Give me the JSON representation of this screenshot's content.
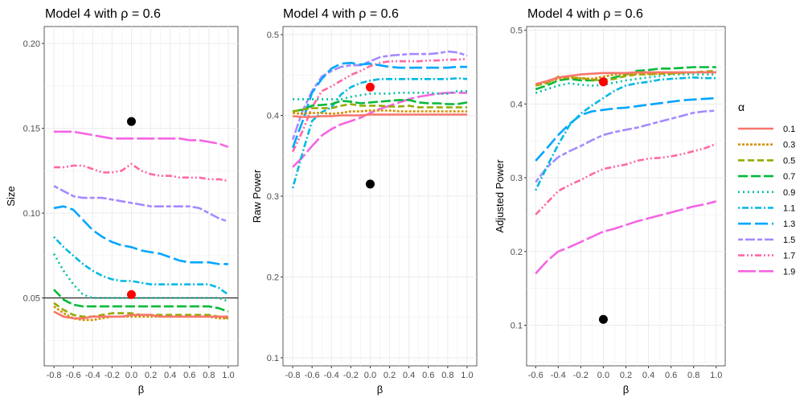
{
  "chart_data": [
    {
      "type": "line",
      "title": "Model 4 with ρ =  0.6",
      "xlabel": "β",
      "ylabel": "Size",
      "xlim": [
        -0.9,
        1.1
      ],
      "ylim": [
        0.01,
        0.21
      ],
      "xticks": [
        "-0.8",
        "-0.6",
        "-0.4",
        "-0.2",
        "0.0",
        "0.2",
        "0.4",
        "0.6",
        "0.8",
        "1.0"
      ],
      "yticks": [
        "0.05",
        "0.10",
        "0.15",
        "0.20"
      ],
      "hline": 0.05,
      "x": [
        -0.8,
        -0.7,
        -0.6,
        -0.5,
        -0.4,
        -0.3,
        -0.2,
        -0.1,
        0.0,
        0.1,
        0.2,
        0.3,
        0.4,
        0.5,
        0.6,
        0.7,
        0.8,
        0.9,
        1.0
      ],
      "series": [
        {
          "name": "0.1",
          "values": [
            0.042,
            0.039,
            0.038,
            0.038,
            0.039,
            0.039,
            0.039,
            0.039,
            0.04,
            0.04,
            0.04,
            0.039,
            0.039,
            0.039,
            0.039,
            0.039,
            0.039,
            0.039,
            0.039
          ]
        },
        {
          "name": "0.3",
          "values": [
            0.045,
            0.041,
            0.038,
            0.037,
            0.037,
            0.038,
            0.039,
            0.039,
            0.039,
            0.039,
            0.039,
            0.039,
            0.039,
            0.039,
            0.039,
            0.039,
            0.039,
            0.038,
            0.038
          ]
        },
        {
          "name": "0.5",
          "values": [
            0.047,
            0.043,
            0.04,
            0.039,
            0.039,
            0.04,
            0.041,
            0.041,
            0.041,
            0.04,
            0.04,
            0.04,
            0.04,
            0.04,
            0.04,
            0.04,
            0.04,
            0.039,
            0.038
          ]
        },
        {
          "name": "0.7",
          "values": [
            0.055,
            0.049,
            0.046,
            0.045,
            0.045,
            0.045,
            0.045,
            0.045,
            0.045,
            0.045,
            0.045,
            0.045,
            0.045,
            0.045,
            0.045,
            0.045,
            0.045,
            0.044,
            0.042
          ]
        },
        {
          "name": "0.9",
          "values": [
            0.076,
            0.066,
            0.058,
            0.052,
            0.05,
            0.05,
            0.05,
            0.05,
            0.05,
            0.05,
            0.05,
            0.05,
            0.05,
            0.05,
            0.05,
            0.05,
            0.05,
            0.05,
            0.048
          ]
        },
        {
          "name": "1.1",
          "values": [
            0.086,
            0.08,
            0.075,
            0.07,
            0.066,
            0.063,
            0.061,
            0.06,
            0.06,
            0.059,
            0.058,
            0.058,
            0.058,
            0.058,
            0.058,
            0.058,
            0.058,
            0.056,
            0.052
          ]
        },
        {
          "name": "1.3",
          "values": [
            0.103,
            0.104,
            0.102,
            0.096,
            0.09,
            0.086,
            0.083,
            0.081,
            0.08,
            0.078,
            0.077,
            0.076,
            0.074,
            0.072,
            0.071,
            0.071,
            0.071,
            0.07,
            0.07
          ]
        },
        {
          "name": "1.5",
          "values": [
            0.116,
            0.113,
            0.11,
            0.109,
            0.109,
            0.109,
            0.108,
            0.107,
            0.106,
            0.105,
            0.104,
            0.104,
            0.104,
            0.104,
            0.104,
            0.103,
            0.1,
            0.097,
            0.095
          ]
        },
        {
          "name": "1.7",
          "values": [
            0.127,
            0.127,
            0.128,
            0.128,
            0.126,
            0.124,
            0.124,
            0.125,
            0.129,
            0.125,
            0.123,
            0.122,
            0.122,
            0.121,
            0.121,
            0.121,
            0.12,
            0.12,
            0.119
          ]
        },
        {
          "name": "1.9",
          "values": [
            0.148,
            0.148,
            0.148,
            0.147,
            0.146,
            0.145,
            0.144,
            0.144,
            0.144,
            0.144,
            0.144,
            0.144,
            0.144,
            0.144,
            0.143,
            0.143,
            0.142,
            0.141,
            0.139
          ]
        }
      ],
      "points": [
        {
          "x": 0.0,
          "y": 0.154,
          "color": "#000000"
        },
        {
          "x": 0.0,
          "y": 0.052,
          "color": "#ff0000"
        }
      ]
    },
    {
      "type": "line",
      "title": "Model 4 with ρ =  0.6",
      "xlabel": "β",
      "ylabel": "Raw Power",
      "xlim": [
        -0.9,
        1.1
      ],
      "ylim": [
        0.09,
        0.51
      ],
      "xticks": [
        "-0.8",
        "-0.6",
        "-0.4",
        "-0.2",
        "0.0",
        "0.2",
        "0.4",
        "0.6",
        "0.8",
        "1.0"
      ],
      "yticks": [
        "0.1",
        "0.2",
        "0.3",
        "0.4",
        "0.5"
      ],
      "x": [
        -0.8,
        -0.7,
        -0.6,
        -0.5,
        -0.4,
        -0.3,
        -0.2,
        -0.1,
        0.0,
        0.1,
        0.2,
        0.3,
        0.4,
        0.5,
        0.6,
        0.7,
        0.8,
        0.9,
        1.0
      ],
      "series": [
        {
          "name": "0.1",
          "values": [
            0.399,
            0.398,
            0.398,
            0.399,
            0.399,
            0.4,
            0.4,
            0.4,
            0.401,
            0.401,
            0.401,
            0.401,
            0.401,
            0.401,
            0.401,
            0.401,
            0.401,
            0.401,
            0.401
          ]
        },
        {
          "name": "0.3",
          "values": [
            0.403,
            0.402,
            0.403,
            0.403,
            0.402,
            0.403,
            0.405,
            0.405,
            0.406,
            0.406,
            0.406,
            0.405,
            0.405,
            0.405,
            0.405,
            0.405,
            0.405,
            0.405,
            0.405
          ]
        },
        {
          "name": "0.5",
          "values": [
            0.405,
            0.407,
            0.409,
            0.409,
            0.409,
            0.412,
            0.414,
            0.412,
            0.412,
            0.412,
            0.411,
            0.411,
            0.412,
            0.41,
            0.41,
            0.41,
            0.41,
            0.41,
            0.41
          ]
        },
        {
          "name": "0.7",
          "values": [
            0.405,
            0.407,
            0.412,
            0.413,
            0.414,
            0.418,
            0.417,
            0.415,
            0.416,
            0.417,
            0.418,
            0.419,
            0.419,
            0.416,
            0.415,
            0.415,
            0.414,
            0.414,
            0.416
          ]
        },
        {
          "name": "0.9",
          "values": [
            0.42,
            0.42,
            0.42,
            0.42,
            0.42,
            0.42,
            0.423,
            0.425,
            0.427,
            0.427,
            0.427,
            0.428,
            0.428,
            0.428,
            0.428,
            0.427,
            0.427,
            0.43,
            0.43
          ]
        },
        {
          "name": "1.1",
          "values": [
            0.31,
            0.353,
            0.393,
            0.404,
            0.41,
            0.426,
            0.435,
            0.44,
            0.443,
            0.445,
            0.445,
            0.445,
            0.445,
            0.445,
            0.445,
            0.445,
            0.445,
            0.446,
            0.445
          ]
        },
        {
          "name": "1.3",
          "values": [
            0.36,
            0.392,
            0.428,
            0.445,
            0.458,
            0.464,
            0.465,
            0.463,
            0.464,
            0.462,
            0.46,
            0.459,
            0.459,
            0.459,
            0.459,
            0.459,
            0.459,
            0.46,
            0.46
          ]
        },
        {
          "name": "1.5",
          "values": [
            0.37,
            0.405,
            0.43,
            0.448,
            0.455,
            0.46,
            0.462,
            0.462,
            0.467,
            0.472,
            0.474,
            0.475,
            0.476,
            0.476,
            0.476,
            0.477,
            0.479,
            0.478,
            0.474
          ]
        },
        {
          "name": "1.7",
          "values": [
            0.355,
            0.38,
            0.41,
            0.43,
            0.436,
            0.443,
            0.45,
            0.455,
            0.461,
            0.465,
            0.467,
            0.467,
            0.467,
            0.467,
            0.468,
            0.468,
            0.469,
            0.469,
            0.47
          ]
        },
        {
          "name": "1.9",
          "values": [
            0.336,
            0.348,
            0.362,
            0.375,
            0.383,
            0.389,
            0.393,
            0.397,
            0.403,
            0.408,
            0.412,
            0.416,
            0.42,
            0.423,
            0.425,
            0.427,
            0.428,
            0.428,
            0.428
          ]
        }
      ],
      "points": [
        {
          "x": 0.0,
          "y": 0.315,
          "color": "#000000"
        },
        {
          "x": 0.0,
          "y": 0.435,
          "color": "#ff0000"
        }
      ]
    },
    {
      "type": "line",
      "title": "Model 4 with ρ =  0.6",
      "xlabel": "β",
      "ylabel": "Adjusted Power",
      "xlim": [
        -0.68,
        1.08
      ],
      "ylim": [
        0.045,
        0.505
      ],
      "xticks": [
        "-0.6",
        "-0.4",
        "-0.2",
        "0.0",
        "0.2",
        "0.4",
        "0.6",
        "0.8",
        "1.0"
      ],
      "yticks": [
        "0.1",
        "0.2",
        "0.3",
        "0.4",
        "0.5"
      ],
      "x": [
        -0.6,
        -0.5,
        -0.4,
        -0.3,
        -0.2,
        -0.1,
        0.0,
        0.1,
        0.2,
        0.3,
        0.4,
        0.5,
        0.6,
        0.7,
        0.8,
        0.9,
        1.0
      ],
      "series": [
        {
          "name": "0.1",
          "values": [
            0.427,
            0.431,
            0.436,
            0.438,
            0.44,
            0.441,
            0.442,
            0.442,
            0.442,
            0.443,
            0.443,
            0.443,
            0.443,
            0.443,
            0.443,
            0.443,
            0.443
          ]
        },
        {
          "name": "0.3",
          "values": [
            0.426,
            0.43,
            0.434,
            0.436,
            0.435,
            0.434,
            0.437,
            0.44,
            0.44,
            0.441,
            0.441,
            0.441,
            0.442,
            0.442,
            0.443,
            0.443,
            0.443
          ]
        },
        {
          "name": "0.5",
          "values": [
            0.425,
            0.428,
            0.437,
            0.436,
            0.435,
            0.433,
            0.432,
            0.434,
            0.438,
            0.44,
            0.44,
            0.441,
            0.441,
            0.442,
            0.443,
            0.444,
            0.445
          ]
        },
        {
          "name": "0.7",
          "values": [
            0.42,
            0.425,
            0.432,
            0.434,
            0.432,
            0.432,
            0.432,
            0.436,
            0.44,
            0.445,
            0.446,
            0.448,
            0.448,
            0.449,
            0.45,
            0.45,
            0.45
          ]
        },
        {
          "name": "0.9",
          "values": [
            0.415,
            0.42,
            0.425,
            0.428,
            0.426,
            0.425,
            0.426,
            0.429,
            0.432,
            0.434,
            0.436,
            0.438,
            0.44,
            0.44,
            0.44,
            0.44,
            0.44
          ]
        },
        {
          "name": "1.1",
          "values": [
            0.283,
            0.315,
            0.345,
            0.371,
            0.387,
            0.398,
            0.408,
            0.418,
            0.425,
            0.428,
            0.43,
            0.433,
            0.434,
            0.435,
            0.436,
            0.435,
            0.435
          ]
        },
        {
          "name": "1.3",
          "values": [
            0.323,
            0.34,
            0.358,
            0.373,
            0.385,
            0.39,
            0.392,
            0.394,
            0.395,
            0.397,
            0.399,
            0.401,
            0.403,
            0.405,
            0.406,
            0.407,
            0.408
          ]
        },
        {
          "name": "1.5",
          "values": [
            0.294,
            0.314,
            0.328,
            0.336,
            0.343,
            0.351,
            0.358,
            0.362,
            0.365,
            0.368,
            0.372,
            0.376,
            0.38,
            0.384,
            0.388,
            0.39,
            0.391
          ]
        },
        {
          "name": "1.7",
          "values": [
            0.25,
            0.266,
            0.282,
            0.29,
            0.297,
            0.305,
            0.312,
            0.315,
            0.318,
            0.323,
            0.326,
            0.327,
            0.329,
            0.332,
            0.336,
            0.34,
            0.346
          ]
        },
        {
          "name": "1.9",
          "values": [
            0.17,
            0.187,
            0.2,
            0.206,
            0.213,
            0.22,
            0.227,
            0.231,
            0.236,
            0.241,
            0.245,
            0.249,
            0.253,
            0.257,
            0.261,
            0.264,
            0.268
          ]
        }
      ],
      "points": [
        {
          "x": 0.0,
          "y": 0.108,
          "color": "#000000"
        },
        {
          "x": 0.0,
          "y": 0.43,
          "color": "#ff0000"
        }
      ]
    }
  ],
  "legend": {
    "title": "α",
    "position": "right",
    "entries": [
      {
        "label": "0.1",
        "color": "#F8766D",
        "dash": "solid"
      },
      {
        "label": "0.3",
        "color": "#D39200",
        "dash": "dotted-dense"
      },
      {
        "label": "0.5",
        "color": "#93AA00",
        "dash": "dashed"
      },
      {
        "label": "0.7",
        "color": "#00BA38",
        "dash": "long-dashed"
      },
      {
        "label": "0.9",
        "color": "#00C19F",
        "dash": "dotted"
      },
      {
        "label": "1.1",
        "color": "#00B9E3",
        "dash": "dot-dash"
      },
      {
        "label": "1.3",
        "color": "#00A5FF",
        "dash": "long-dash"
      },
      {
        "label": "1.5",
        "color": "#A58AFF",
        "dash": "two-dash"
      },
      {
        "label": "1.7",
        "color": "#FF67A4",
        "dash": "dash-dot-dot"
      },
      {
        "label": "1.9",
        "color": "#F564E3",
        "dash": "long-dash-solid"
      }
    ]
  }
}
